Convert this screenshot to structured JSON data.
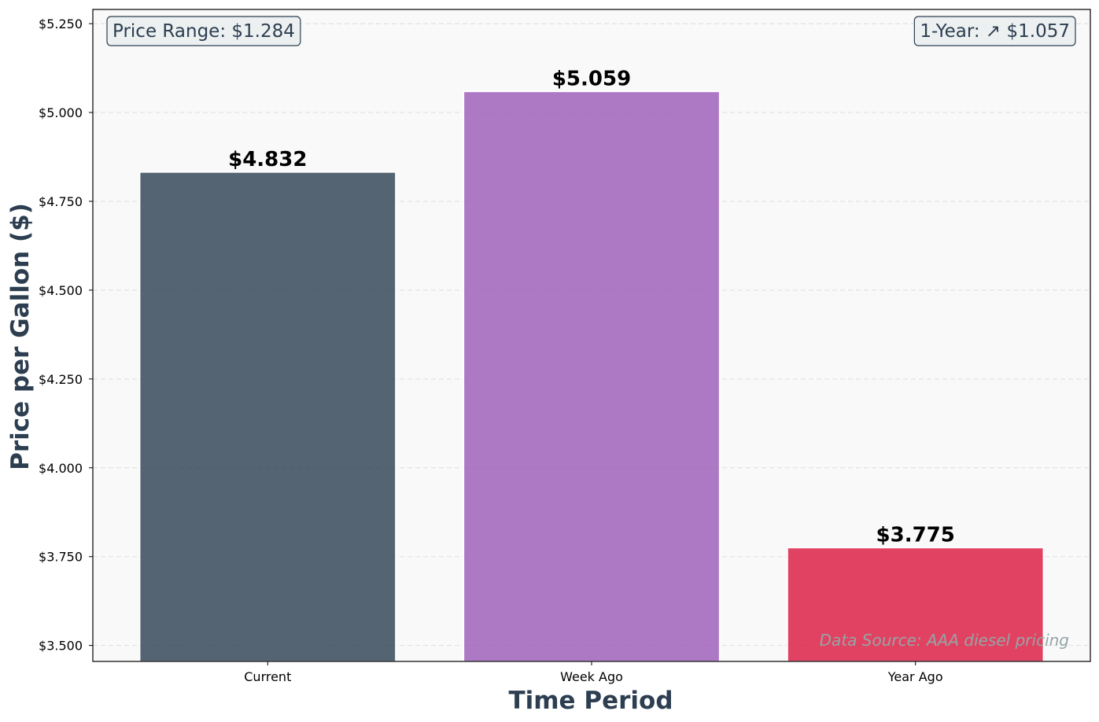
{
  "chart_data": {
    "type": "bar",
    "title": "",
    "xlabel": "Time Period",
    "ylabel": "Price per Gallon ($)",
    "categories": [
      "Current",
      "Week Ago",
      "Year Ago"
    ],
    "values": [
      4.832,
      5.059,
      3.775
    ],
    "value_labels": [
      "$4.832",
      "$5.059",
      "$3.775"
    ],
    "colors": [
      "#2c3e50",
      "#9b59b6",
      "#dc143c"
    ],
    "ylim": [
      3.455,
      5.29
    ],
    "yticks": [
      3.5,
      3.75,
      4.0,
      4.25,
      4.5,
      4.75,
      5.0,
      5.25
    ],
    "ytick_labels": [
      "$3.500",
      "$3.750",
      "$4.000",
      "$4.250",
      "$4.500",
      "$4.750",
      "$5.000",
      "$5.250"
    ],
    "grid": true,
    "annotations": {
      "price_range": "Price Range: $1.284",
      "one_year": "1-Year: ↗ $1.057",
      "source": "Data Source: AAA diesel pricing"
    }
  }
}
